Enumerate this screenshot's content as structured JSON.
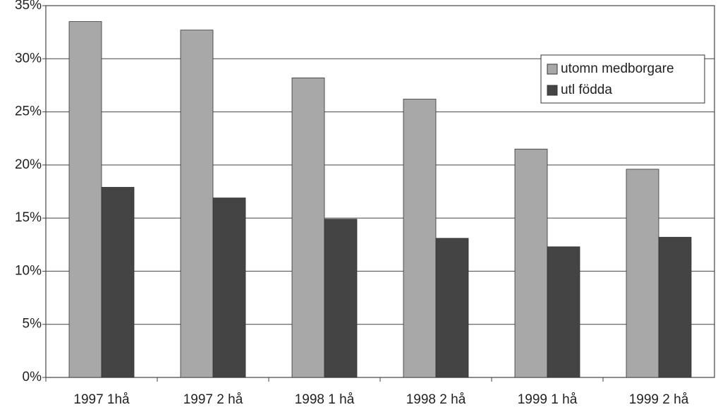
{
  "chart_data": {
    "type": "bar",
    "categories": [
      "1997 1hå",
      "1997 2 hå",
      "1998 1 hå",
      "1998 2 hå",
      "1999 1 hå",
      "1999 2 hå"
    ],
    "series": [
      {
        "name": "utomn medborgare",
        "color": "#a8a8a8",
        "values": [
          33.5,
          32.7,
          28.2,
          26.2,
          21.5,
          19.6
        ]
      },
      {
        "name": "utl födda",
        "color": "#444444",
        "values": [
          17.9,
          16.9,
          14.9,
          13.1,
          12.3,
          13.2
        ]
      }
    ],
    "ylim": [
      0,
      35
    ],
    "yticks": [
      {
        "value": 0,
        "label": "0%"
      },
      {
        "value": 5,
        "label": "5%"
      },
      {
        "value": 10,
        "label": "10%"
      },
      {
        "value": 15,
        "label": "15%"
      },
      {
        "value": 20,
        "label": "20%"
      },
      {
        "value": 25,
        "label": "25%"
      },
      {
        "value": 30,
        "label": "30%"
      },
      {
        "value": 35,
        "label": "35%"
      }
    ],
    "grid": true,
    "legend": "upper right"
  }
}
